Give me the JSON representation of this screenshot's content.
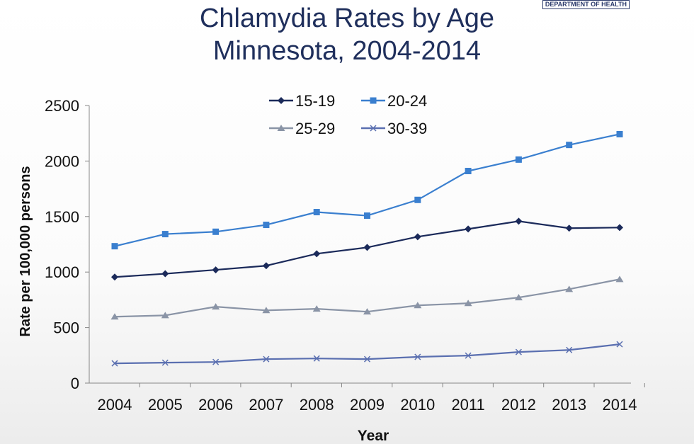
{
  "logo_text": "DEPARTMENT OF HEALTH",
  "chart_data": {
    "type": "line",
    "title": "Chlamydia Rates by Age",
    "subtitle": "Minnesota, 2004-2014",
    "xlabel": "Year",
    "ylabel": "Rate per 100,000 persons",
    "ylim": [
      0,
      2500
    ],
    "yticks": [
      "0",
      "500",
      "1000",
      "1500",
      "2000",
      "2500"
    ],
    "categories": [
      "2004",
      "2005",
      "2006",
      "2007",
      "2008",
      "2009",
      "2010",
      "2011",
      "2012",
      "2013",
      "2014"
    ],
    "grid": false,
    "legend_position": "top-center",
    "series": [
      {
        "name": "15-19",
        "color": "#1b2a5a",
        "marker": "diamond",
        "values": [
          955,
          985,
          1020,
          1057,
          1165,
          1222,
          1318,
          1388,
          1458,
          1395,
          1401
        ]
      },
      {
        "name": "20-24",
        "color": "#3a7fcf",
        "marker": "square",
        "values": [
          1233,
          1342,
          1363,
          1425,
          1540,
          1508,
          1650,
          1910,
          2013,
          2145,
          2242
        ]
      },
      {
        "name": "25-29",
        "color": "#8a94a6",
        "marker": "triangle",
        "values": [
          598,
          610,
          688,
          655,
          669,
          643,
          700,
          719,
          771,
          846,
          935
        ]
      },
      {
        "name": "30-39",
        "color": "#5a6fb0",
        "marker": "x",
        "values": [
          178,
          184,
          190,
          216,
          222,
          216,
          236,
          248,
          280,
          298,
          350
        ]
      }
    ]
  }
}
